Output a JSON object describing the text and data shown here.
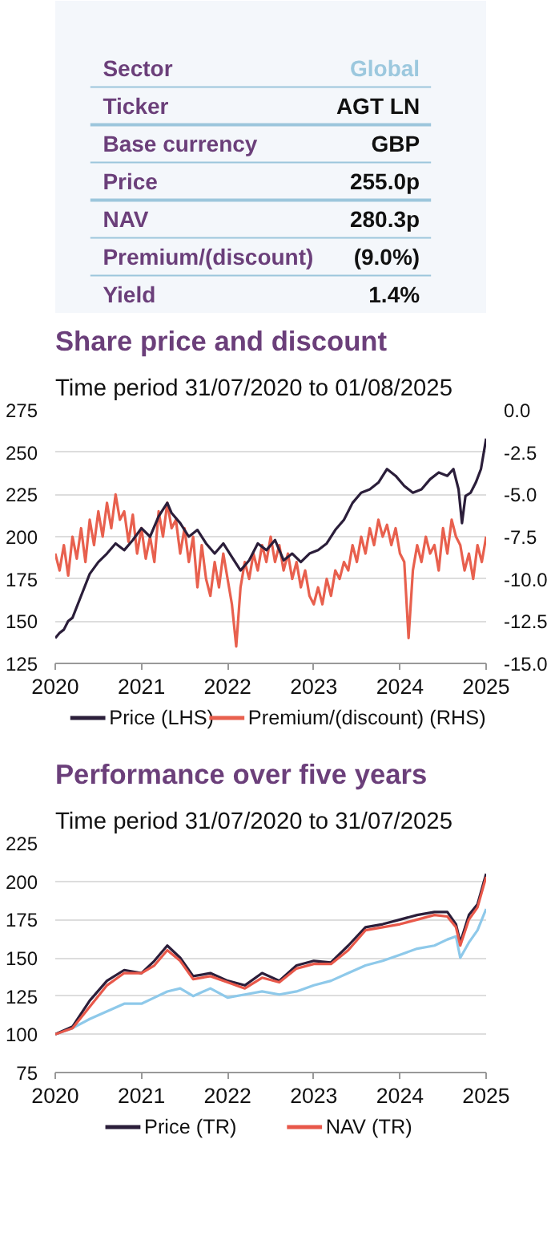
{
  "chart_data": [
    {
      "type": "other",
      "categories": [
        "Sector",
        "Ticker",
        "Base currency",
        "Price",
        "NAV",
        "Premium/(discount)",
        "Yield"
      ],
      "value_labels": [
        "Global",
        "AGT LN",
        "GBP",
        "255.0p",
        "280.3p",
        "(9.0%)",
        "1.4%"
      ]
    },
    {
      "type": "line",
      "title": "Share price and discount",
      "subtitle": "Time period 31/07/2020 to 01/08/2025",
      "xlim": [
        2020,
        2025
      ],
      "xticks": [
        2020,
        2021,
        2022,
        2023,
        2024,
        2025
      ],
      "ylim": [
        125,
        275
      ],
      "yticks": [
        125,
        150,
        175,
        200,
        225,
        250,
        275
      ],
      "y2lim": [
        -15,
        0
      ],
      "y2ticks": [
        {
          "value": -15,
          "label": "-15.0"
        },
        {
          "value": -12.5,
          "label": "-12.5"
        },
        {
          "value": -10,
          "label": "-10.0"
        },
        {
          "value": -7.5,
          "label": "-7.5"
        },
        {
          "value": -5,
          "label": "-5.0"
        },
        {
          "value": -2.5,
          "label": "-2.5"
        },
        {
          "value": 0,
          "label": "0.0"
        }
      ],
      "grid": "y",
      "legend": "bottom",
      "series": [
        {
          "name": "Premium/(discount) (RHS)",
          "color": "#e8604e",
          "axis": "y2",
          "x": [
            2020.0,
            2020.05,
            2020.1,
            2020.15,
            2020.2,
            2020.25,
            2020.3,
            2020.35,
            2020.4,
            2020.45,
            2020.5,
            2020.55,
            2020.6,
            2020.65,
            2020.7,
            2020.75,
            2020.8,
            2020.85,
            2020.9,
            2020.95,
            2021.0,
            2021.05,
            2021.1,
            2021.15,
            2021.2,
            2021.25,
            2021.3,
            2021.35,
            2021.4,
            2021.45,
            2021.5,
            2021.55,
            2021.6,
            2021.65,
            2021.7,
            2021.75,
            2021.8,
            2021.85,
            2021.9,
            2021.95,
            2022.0,
            2022.05,
            2022.1,
            2022.15,
            2022.2,
            2022.25,
            2022.3,
            2022.35,
            2022.4,
            2022.45,
            2022.5,
            2022.55,
            2022.6,
            2022.65,
            2022.7,
            2022.75,
            2022.8,
            2022.85,
            2022.9,
            2022.95,
            2023.0,
            2023.05,
            2023.1,
            2023.15,
            2023.2,
            2023.25,
            2023.3,
            2023.35,
            2023.4,
            2023.45,
            2023.5,
            2023.55,
            2023.6,
            2023.65,
            2023.7,
            2023.75,
            2023.8,
            2023.85,
            2023.9,
            2023.95,
            2024.0,
            2024.05,
            2024.1,
            2024.15,
            2024.2,
            2024.25,
            2024.3,
            2024.35,
            2024.4,
            2024.45,
            2024.5,
            2024.55,
            2024.6,
            2024.65,
            2024.7,
            2024.75,
            2024.8,
            2024.85,
            2024.9,
            2024.95,
            2025.0
          ],
          "values": [
            -8.5,
            -9.5,
            -8.0,
            -9.8,
            -7.5,
            -8.8,
            -7.0,
            -9.0,
            -6.5,
            -8.0,
            -6.0,
            -7.5,
            -5.5,
            -7.0,
            -5.0,
            -6.5,
            -6.0,
            -7.8,
            -6.2,
            -8.5,
            -7.0,
            -8.8,
            -7.5,
            -9.0,
            -6.0,
            -7.5,
            -5.5,
            -7.0,
            -6.5,
            -8.5,
            -7.0,
            -9.0,
            -7.5,
            -10.5,
            -8.0,
            -10.0,
            -11.0,
            -9.0,
            -10.5,
            -8.5,
            -10.0,
            -11.5,
            -14.0,
            -10.5,
            -9.0,
            -10.0,
            -8.5,
            -9.5,
            -8.0,
            -9.0,
            -7.5,
            -9.0,
            -8.0,
            -9.5,
            -8.5,
            -10.0,
            -9.0,
            -10.5,
            -9.5,
            -11.0,
            -11.5,
            -10.5,
            -11.5,
            -10.0,
            -11.0,
            -9.5,
            -10.0,
            -9.0,
            -9.5,
            -8.0,
            -9.0,
            -7.5,
            -8.5,
            -7.0,
            -8.0,
            -6.5,
            -7.5,
            -6.8,
            -8.0,
            -7.0,
            -8.5,
            -9.0,
            -13.5,
            -9.5,
            -8.0,
            -9.0,
            -7.5,
            -8.5,
            -8.0,
            -9.5,
            -7.0,
            -8.5,
            -6.5,
            -7.5,
            -8.0,
            -9.5,
            -8.5,
            -10.0,
            -8.0,
            -9.0,
            -7.5
          ]
        },
        {
          "name": "Price (LHS)",
          "color": "#2b1e3a",
          "x": [
            2020.0,
            2020.05,
            2020.1,
            2020.15,
            2020.2,
            2020.3,
            2020.4,
            2020.5,
            2020.6,
            2020.7,
            2020.8,
            2020.9,
            2021.0,
            2021.1,
            2021.2,
            2021.3,
            2021.35,
            2021.45,
            2021.55,
            2021.65,
            2021.75,
            2021.85,
            2021.95,
            2022.05,
            2022.15,
            2022.25,
            2022.35,
            2022.45,
            2022.55,
            2022.65,
            2022.75,
            2022.85,
            2022.95,
            2023.05,
            2023.15,
            2023.25,
            2023.35,
            2023.45,
            2023.55,
            2023.65,
            2023.75,
            2023.85,
            2023.95,
            2024.05,
            2024.15,
            2024.25,
            2024.35,
            2024.45,
            2024.55,
            2024.62,
            2024.68,
            2024.72,
            2024.76,
            2024.82,
            2024.88,
            2024.94,
            2024.98,
            2025.0
          ],
          "values": [
            140,
            143,
            145,
            150,
            152,
            165,
            178,
            185,
            190,
            196,
            192,
            198,
            205,
            200,
            212,
            220,
            214,
            208,
            200,
            204,
            196,
            190,
            196,
            188,
            180,
            186,
            196,
            192,
            198,
            186,
            190,
            185,
            190,
            192,
            196,
            204,
            210,
            220,
            226,
            228,
            232,
            240,
            236,
            230,
            226,
            228,
            234,
            238,
            236,
            240,
            228,
            208,
            224,
            226,
            232,
            240,
            252,
            258
          ]
        }
      ]
    },
    {
      "type": "line",
      "title": "Performance over five years",
      "subtitle": "Time period 31/07/2020 to 31/07/2025",
      "xlim": [
        2020,
        2025
      ],
      "xticks": [
        2020,
        2021,
        2022,
        2023,
        2024,
        2025
      ],
      "ylim": [
        75,
        225
      ],
      "yticks": [
        75,
        100,
        125,
        150,
        175,
        200,
        225
      ],
      "grid": "y",
      "legend": "bottom",
      "x": [
        2020.0,
        2020.2,
        2020.4,
        2020.6,
        2020.8,
        2021.0,
        2021.15,
        2021.3,
        2021.45,
        2021.6,
        2021.8,
        2022.0,
        2022.2,
        2022.4,
        2022.6,
        2022.8,
        2023.0,
        2023.2,
        2023.4,
        2023.6,
        2023.8,
        2024.0,
        2024.2,
        2024.4,
        2024.55,
        2024.65,
        2024.7,
        2024.8,
        2024.9,
        2025.0
      ],
      "series": [
        {
          "color": "#8ec9ea",
          "values": [
            100,
            104,
            110,
            115,
            120,
            120,
            124,
            128,
            130,
            125,
            130,
            124,
            126,
            128,
            126,
            128,
            132,
            135,
            140,
            145,
            148,
            152,
            156,
            158,
            162,
            164,
            150,
            160,
            168,
            182
          ]
        },
        {
          "name": "Price (TR)",
          "color": "#2b1e3a",
          "values": [
            100,
            105,
            122,
            135,
            142,
            140,
            148,
            158,
            150,
            138,
            140,
            135,
            132,
            140,
            135,
            145,
            148,
            147,
            158,
            170,
            172,
            175,
            178,
            180,
            180,
            172,
            160,
            178,
            185,
            205
          ]
        },
        {
          "name": "NAV (TR)",
          "color": "#e8584a",
          "values": [
            100,
            104,
            118,
            132,
            140,
            140,
            145,
            155,
            148,
            136,
            138,
            134,
            130,
            137,
            134,
            143,
            146,
            146,
            155,
            168,
            170,
            172,
            175,
            178,
            177,
            170,
            158,
            175,
            183,
            203
          ]
        }
      ]
    }
  ]
}
